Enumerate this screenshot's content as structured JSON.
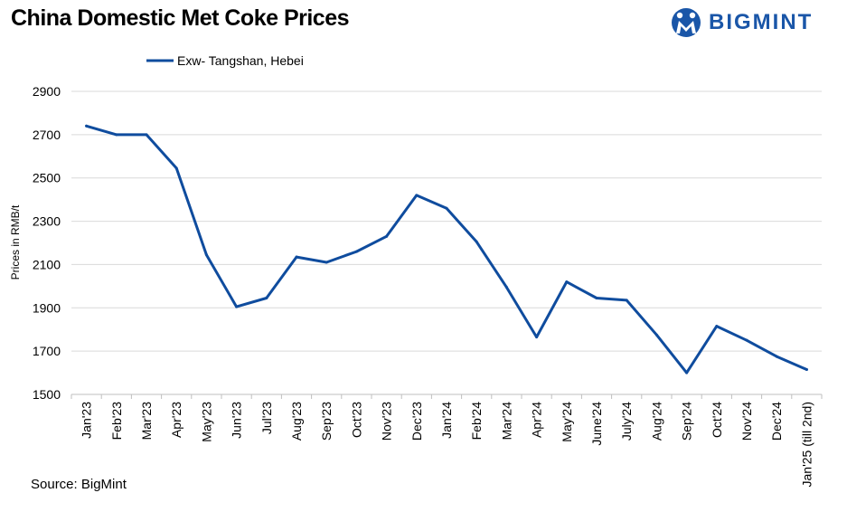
{
  "header": {
    "title": "China Domestic Met Coke Prices",
    "logo_text": "BIGMINT"
  },
  "footer": {
    "source": "Source: BigMint"
  },
  "colors": {
    "series": "#0f4c9e",
    "grid": "#d9d9d9",
    "brand": "#1a56a8"
  },
  "chart_data": {
    "type": "line",
    "title": "China Domestic Met Coke Prices",
    "xlabel": "",
    "ylabel": "Prices in RMB/t",
    "ylim": [
      1500,
      2900
    ],
    "yticks": [
      1500,
      1700,
      1900,
      2100,
      2300,
      2500,
      2700,
      2900
    ],
    "grid": true,
    "legend_position": "top-left",
    "categories": [
      "Jan'23",
      "Feb'23",
      "Mar'23",
      "Apr'23",
      "May'23",
      "Jun'23",
      "Jul'23",
      "Aug'23",
      "Sep'23",
      "Oct'23",
      "Nov'23",
      "Dec'23",
      "Jan'24",
      "Feb'24",
      "Mar'24",
      "Apr'24",
      "May'24",
      "June'24",
      "July'24",
      "Aug'24",
      "Sep'24",
      "Oct'24",
      "Nov'24",
      "Dec'24",
      "Jan'25 (till 2nd)"
    ],
    "series": [
      {
        "name": "Exw- Tangshan, Hebei",
        "values": [
          2740,
          2700,
          2700,
          2545,
          2145,
          1905,
          1945,
          2135,
          2110,
          2160,
          2230,
          2420,
          2360,
          2205,
          1995,
          1765,
          2020,
          1945,
          1935,
          1775,
          1600,
          1815,
          1750,
          1675,
          1615
        ]
      }
    ]
  }
}
